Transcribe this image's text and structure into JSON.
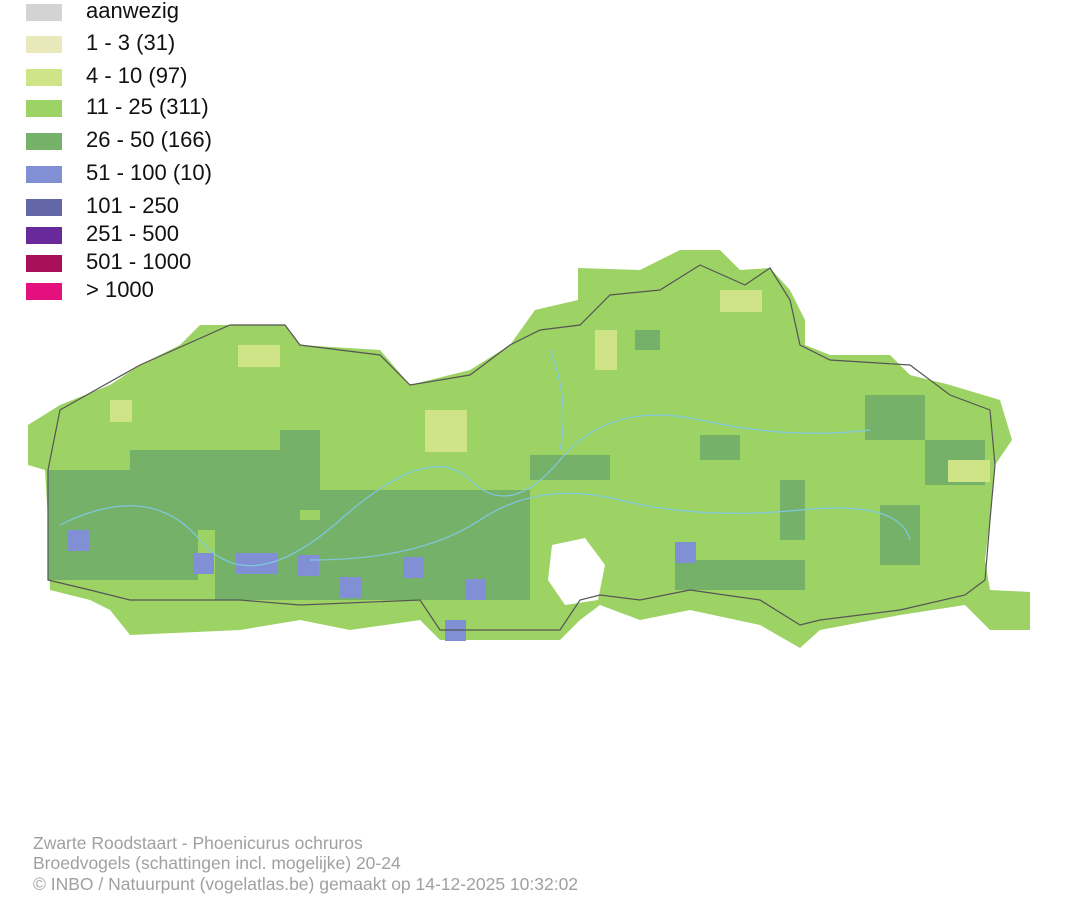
{
  "legend": [
    {
      "label": "aanwezig",
      "color": "#d3d3d3"
    },
    {
      "label": "1 - 3 (31)",
      "color": "#e8e8ba"
    },
    {
      "label": "4 - 10 (97)",
      "color": "#cfe486"
    },
    {
      "label": "11 - 25 (311)",
      "color": "#9dd264"
    },
    {
      "label": "26 - 50 (166)",
      "color": "#76b16a"
    },
    {
      "label": "51 - 100 (10)",
      "color": "#8190d4"
    },
    {
      "label": "101 - 250",
      "color": "#6367a8"
    },
    {
      "label": "251 - 500",
      "color": "#682a9a"
    },
    {
      "label": "501 - 1000",
      "color": "#a8105a"
    },
    {
      "label": "> 1000",
      "color": "#e4107e"
    }
  ],
  "footer": {
    "lines": [
      "Zwarte Roodstaart - Phoenicurus ochruros",
      "Broedvogels (schattingen incl. mogelijke) 20-24",
      "© INBO / Natuurpunt (vogelatlas.be) gemaakt op 14-12-2025 10:32:02"
    ]
  }
}
